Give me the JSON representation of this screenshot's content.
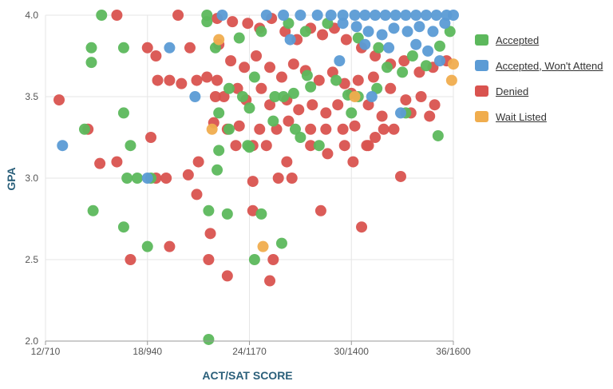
{
  "chart_data": {
    "type": "scatter",
    "title": "",
    "xlabel": "ACT/SAT SCORE",
    "ylabel": "GPA",
    "xlim": [
      12,
      36
    ],
    "ylim": [
      2.0,
      4.0
    ],
    "x_ticks": [
      {
        "value": 12,
        "label": "12/710"
      },
      {
        "value": 18,
        "label": "18/940"
      },
      {
        "value": 24,
        "label": "24/1170"
      },
      {
        "value": 30,
        "label": "30/1400"
      },
      {
        "value": 36,
        "label": "36/1600"
      }
    ],
    "y_ticks": [
      {
        "value": 2.0,
        "label": "2.0"
      },
      {
        "value": 2.5,
        "label": "2.5"
      },
      {
        "value": 3.0,
        "label": "3.0"
      },
      {
        "value": 3.5,
        "label": "3.5"
      },
      {
        "value": 4.0,
        "label": "4.0"
      }
    ],
    "grid": true,
    "legend_position": "right",
    "series": [
      {
        "name": "Accepted",
        "color": "#5cb85c",
        "points": [
          [
            15.3,
            4.0
          ],
          [
            21.5,
            4.0
          ],
          [
            21.5,
            3.96
          ],
          [
            14.7,
            3.8
          ],
          [
            16.6,
            3.8
          ],
          [
            14.7,
            3.71
          ],
          [
            23.4,
            3.86
          ],
          [
            22.0,
            3.8
          ],
          [
            24.7,
            3.9
          ],
          [
            26.3,
            3.95
          ],
          [
            27.3,
            3.9
          ],
          [
            28.6,
            3.95
          ],
          [
            30.4,
            3.86
          ],
          [
            31.6,
            3.8
          ],
          [
            33.6,
            3.75
          ],
          [
            34.4,
            3.69
          ],
          [
            35.2,
            3.81
          ],
          [
            35.8,
            3.9
          ],
          [
            22.8,
            3.55
          ],
          [
            23.6,
            3.5
          ],
          [
            24.3,
            3.62
          ],
          [
            25.5,
            3.5
          ],
          [
            26.0,
            3.5
          ],
          [
            26.6,
            3.52
          ],
          [
            27.4,
            3.63
          ],
          [
            27.6,
            3.56
          ],
          [
            29.1,
            3.6
          ],
          [
            29.8,
            3.51
          ],
          [
            30.4,
            3.5
          ],
          [
            31.5,
            3.55
          ],
          [
            32.1,
            3.68
          ],
          [
            33.0,
            3.65
          ],
          [
            16.6,
            3.4
          ],
          [
            22.2,
            3.4
          ],
          [
            22.8,
            3.3
          ],
          [
            24.0,
            3.43
          ],
          [
            25.4,
            3.35
          ],
          [
            26.7,
            3.3
          ],
          [
            27.0,
            3.25
          ],
          [
            28.1,
            3.2
          ],
          [
            30.0,
            3.4
          ],
          [
            33.2,
            3.4
          ],
          [
            35.1,
            3.26
          ],
          [
            17.0,
            3.2
          ],
          [
            22.2,
            3.17
          ],
          [
            23.9,
            3.2
          ],
          [
            24.0,
            3.19
          ],
          [
            22.1,
            3.05
          ],
          [
            14.3,
            3.3
          ],
          [
            16.8,
            3.0
          ],
          [
            17.4,
            3.0
          ],
          [
            18.2,
            3.0
          ],
          [
            14.8,
            2.8
          ],
          [
            16.6,
            2.7
          ],
          [
            21.6,
            2.8
          ],
          [
            22.7,
            2.78
          ],
          [
            24.7,
            2.78
          ],
          [
            25.9,
            2.6
          ],
          [
            18.0,
            2.58
          ],
          [
            24.3,
            2.5
          ],
          [
            21.6,
            2.01
          ]
        ]
      },
      {
        "name": "Accepted, Won't Attend",
        "color": "#5b9bd5",
        "points": [
          [
            22.4,
            4.0
          ],
          [
            25.0,
            4.0
          ],
          [
            26.0,
            4.0
          ],
          [
            27.0,
            4.0
          ],
          [
            28.0,
            4.0
          ],
          [
            28.8,
            4.0
          ],
          [
            29.5,
            4.0
          ],
          [
            30.2,
            4.0
          ],
          [
            30.8,
            4.0
          ],
          [
            31.4,
            4.0
          ],
          [
            32.0,
            4.0
          ],
          [
            32.6,
            4.0
          ],
          [
            33.2,
            4.0
          ],
          [
            33.8,
            4.0
          ],
          [
            34.4,
            4.0
          ],
          [
            35.0,
            4.0
          ],
          [
            35.6,
            4.0
          ],
          [
            36.0,
            4.0
          ],
          [
            29.5,
            3.95
          ],
          [
            30.3,
            3.93
          ],
          [
            31.0,
            3.9
          ],
          [
            31.8,
            3.88
          ],
          [
            32.5,
            3.92
          ],
          [
            33.3,
            3.9
          ],
          [
            34.0,
            3.93
          ],
          [
            34.8,
            3.9
          ],
          [
            35.5,
            3.95
          ],
          [
            30.8,
            3.82
          ],
          [
            32.2,
            3.8
          ],
          [
            33.8,
            3.82
          ],
          [
            34.5,
            3.78
          ],
          [
            35.2,
            3.72
          ],
          [
            26.4,
            3.85
          ],
          [
            29.3,
            3.72
          ],
          [
            31.2,
            3.5
          ],
          [
            32.9,
            3.4
          ],
          [
            19.3,
            3.8
          ],
          [
            20.8,
            3.5
          ],
          [
            18.0,
            3.0
          ],
          [
            13.0,
            3.2
          ]
        ]
      },
      {
        "name": "Denied",
        "color": "#d9534f",
        "points": [
          [
            16.2,
            4.0
          ],
          [
            19.8,
            4.0
          ],
          [
            22.1,
            3.98
          ],
          [
            23.0,
            3.96
          ],
          [
            23.9,
            3.95
          ],
          [
            24.6,
            3.92
          ],
          [
            25.3,
            3.98
          ],
          [
            26.1,
            3.9
          ],
          [
            26.8,
            3.85
          ],
          [
            27.6,
            3.92
          ],
          [
            28.3,
            3.88
          ],
          [
            29.0,
            3.92
          ],
          [
            29.7,
            3.85
          ],
          [
            30.6,
            3.8
          ],
          [
            31.4,
            3.75
          ],
          [
            32.3,
            3.7
          ],
          [
            33.1,
            3.72
          ],
          [
            34.0,
            3.65
          ],
          [
            34.8,
            3.68
          ],
          [
            35.6,
            3.72
          ],
          [
            18.0,
            3.8
          ],
          [
            18.5,
            3.75
          ],
          [
            20.5,
            3.8
          ],
          [
            22.2,
            3.82
          ],
          [
            22.9,
            3.72
          ],
          [
            23.7,
            3.68
          ],
          [
            24.4,
            3.75
          ],
          [
            25.2,
            3.68
          ],
          [
            25.9,
            3.62
          ],
          [
            26.6,
            3.7
          ],
          [
            27.3,
            3.66
          ],
          [
            28.1,
            3.6
          ],
          [
            28.9,
            3.65
          ],
          [
            29.6,
            3.58
          ],
          [
            30.4,
            3.6
          ],
          [
            31.3,
            3.62
          ],
          [
            32.3,
            3.55
          ],
          [
            33.2,
            3.48
          ],
          [
            34.1,
            3.5
          ],
          [
            34.9,
            3.45
          ],
          [
            18.6,
            3.6
          ],
          [
            19.3,
            3.6
          ],
          [
            20.0,
            3.58
          ],
          [
            20.9,
            3.6
          ],
          [
            21.5,
            3.62
          ],
          [
            22.1,
            3.6
          ],
          [
            22.5,
            3.5
          ],
          [
            23.3,
            3.55
          ],
          [
            23.8,
            3.48
          ],
          [
            24.7,
            3.55
          ],
          [
            25.2,
            3.45
          ],
          [
            26.2,
            3.48
          ],
          [
            26.9,
            3.42
          ],
          [
            27.7,
            3.45
          ],
          [
            28.5,
            3.4
          ],
          [
            29.2,
            3.45
          ],
          [
            30.0,
            3.52
          ],
          [
            31.0,
            3.45
          ],
          [
            31.8,
            3.38
          ],
          [
            32.5,
            3.3
          ],
          [
            33.5,
            3.4
          ],
          [
            34.6,
            3.38
          ],
          [
            12.8,
            3.48
          ],
          [
            14.5,
            3.3
          ],
          [
            22.0,
            3.5
          ],
          [
            23.4,
            3.32
          ],
          [
            24.6,
            3.3
          ],
          [
            25.6,
            3.3
          ],
          [
            26.3,
            3.35
          ],
          [
            27.6,
            3.3
          ],
          [
            28.5,
            3.3
          ],
          [
            29.5,
            3.3
          ],
          [
            30.2,
            3.32
          ],
          [
            31.0,
            3.2
          ],
          [
            21.9,
            3.34
          ],
          [
            22.7,
            3.3
          ],
          [
            23.2,
            3.2
          ],
          [
            24.2,
            3.2
          ],
          [
            25.0,
            3.2
          ],
          [
            26.2,
            3.1
          ],
          [
            27.6,
            3.2
          ],
          [
            28.6,
            3.15
          ],
          [
            29.6,
            3.2
          ],
          [
            31.4,
            3.25
          ],
          [
            31.9,
            3.3
          ],
          [
            15.2,
            3.09
          ],
          [
            16.2,
            3.1
          ],
          [
            18.2,
            3.25
          ],
          [
            21.0,
            3.1
          ],
          [
            20.4,
            3.02
          ],
          [
            25.7,
            3.0
          ],
          [
            26.5,
            3.0
          ],
          [
            30.1,
            3.1
          ],
          [
            30.9,
            3.2
          ],
          [
            32.9,
            3.01
          ],
          [
            20.9,
            2.9
          ],
          [
            24.2,
            2.98
          ],
          [
            18.5,
            3.0
          ],
          [
            19.1,
            3.0
          ],
          [
            21.7,
            2.66
          ],
          [
            24.2,
            2.8
          ],
          [
            28.2,
            2.8
          ],
          [
            30.6,
            2.7
          ],
          [
            19.3,
            2.58
          ],
          [
            17.0,
            2.5
          ],
          [
            21.6,
            2.5
          ],
          [
            25.4,
            2.5
          ],
          [
            22.7,
            2.4
          ],
          [
            25.2,
            2.37
          ]
        ]
      },
      {
        "name": "Wait Listed",
        "color": "#f0ad4e",
        "points": [
          [
            21.8,
            3.3
          ],
          [
            24.8,
            2.58
          ],
          [
            36.0,
            3.7
          ],
          [
            35.9,
            3.6
          ],
          [
            30.2,
            3.5
          ],
          [
            22.2,
            3.85
          ]
        ]
      }
    ]
  }
}
